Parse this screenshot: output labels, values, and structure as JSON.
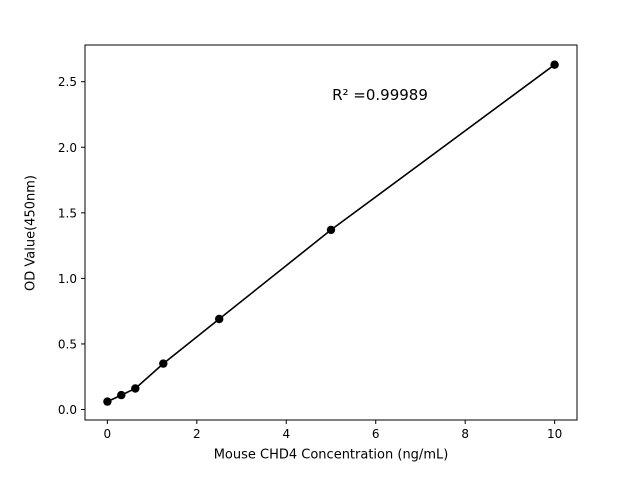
{
  "chart": {
    "xlabel": "Mouse CHD4 Concentration (ng/mL)",
    "ylabel": "OD Value(450nm)",
    "annotation": "R² =0.99989"
  },
  "chart_data": {
    "type": "scatter",
    "x": [
      0,
      0.3125,
      0.625,
      1.25,
      2.5,
      5,
      10
    ],
    "y": [
      0.06,
      0.11,
      0.16,
      0.35,
      0.69,
      1.37,
      2.63
    ],
    "title": "",
    "xlabel": "Mouse CHD4 Concentration (ng/mL)",
    "ylabel": "OD Value(450nm)",
    "annotation": "R² =0.99989",
    "x_ticks": [
      0,
      2,
      4,
      6,
      8,
      10
    ],
    "y_ticks": [
      0.0,
      0.5,
      1.0,
      1.5,
      2.0,
      2.5
    ],
    "xlim": [
      -0.5,
      10.5
    ],
    "ylim": [
      -0.08,
      2.78
    ],
    "line": true,
    "marker": "circle",
    "marker_color": "#000000",
    "line_color": "#000000",
    "background": "#ffffff",
    "grid": false,
    "legend": "none"
  }
}
